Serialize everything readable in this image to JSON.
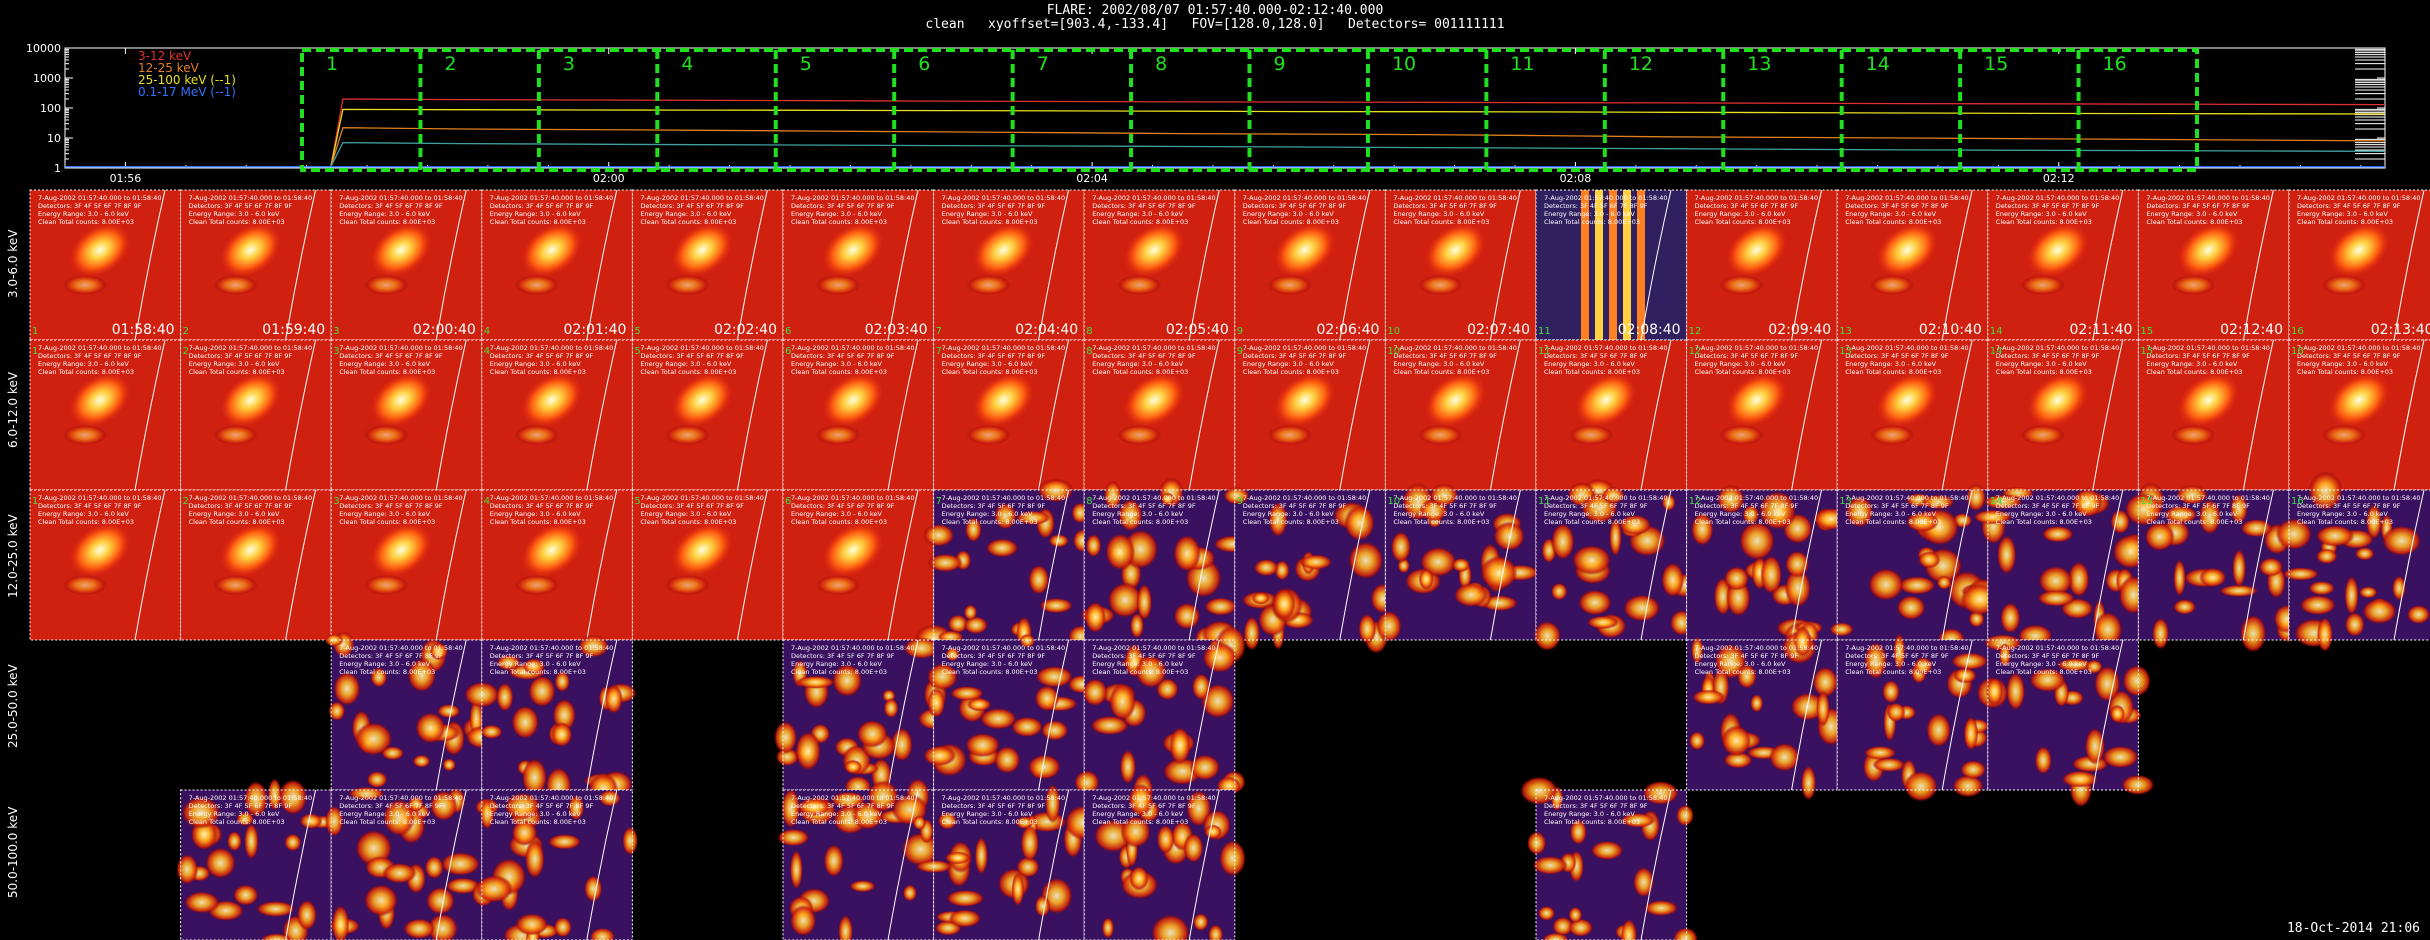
{
  "header": {
    "line1": "FLARE: 2002/08/07 01:57:40.000-02:12:40.000",
    "line2": "clean   xyoffset=[903.4,-133.4]   FOV=[128.0,128.0]   Detectors= 001111111"
  },
  "footer": {
    "timestamp": "18-Oct-2014 21:06"
  },
  "chart_data": {
    "type": "line",
    "lightcurve": {
      "yscale": "log",
      "ylim": [
        1,
        10000
      ],
      "yticks": [
        "1",
        "10",
        "100",
        "1000",
        "10000"
      ],
      "xticks": [
        {
          "label": "01:56",
          "time_min": 0
        },
        {
          "label": "02:00",
          "time_min": 4
        },
        {
          "label": "02:04",
          "time_min": 8
        },
        {
          "label": "02:08",
          "time_min": 12
        },
        {
          "label": "02:12",
          "time_min": 16
        }
      ],
      "xlim_min": [
        -0.5,
        18.7
      ],
      "legend": [
        {
          "label": "3-12 keV",
          "color": "#e03030"
        },
        {
          "label": "12-25 keV",
          "color": "#e08020"
        },
        {
          "label": "25-100 keV (--1)",
          "color": "#e8e020"
        },
        {
          "label": "0.1-17 MeV (--1)",
          "color": "#3070ff"
        }
      ],
      "series": [
        {
          "color": "#e03030",
          "start_min": 1.8,
          "values": [
            200,
            190,
            185,
            180,
            175,
            170,
            165,
            160,
            158,
            155,
            150,
            148,
            145,
            140,
            138,
            135,
            132,
            130
          ]
        },
        {
          "color": "#e8e020",
          "start_min": 1.8,
          "values": [
            90,
            88,
            86,
            85,
            84,
            82,
            80,
            78,
            76,
            75,
            74,
            72,
            70,
            68,
            66,
            65,
            64,
            63
          ]
        },
        {
          "color": "#e08020",
          "start_min": 1.8,
          "values": [
            22,
            20,
            19,
            18,
            17,
            16,
            15,
            14,
            13.5,
            13,
            12,
            11,
            10.5,
            10,
            9.5,
            9,
            8.5,
            8
          ]
        },
        {
          "color": "#40a0a0",
          "start_min": 1.8,
          "values": [
            7,
            6.5,
            6.2,
            6,
            5.8,
            5.6,
            5.4,
            5.2,
            5,
            4.8,
            4.6,
            4.4,
            4.2,
            4,
            3.9,
            3.8,
            3.7,
            3.6
          ]
        },
        {
          "color": "#3070ff",
          "start_min": -0.5,
          "values": [
            1.1,
            1.1,
            1.1,
            1.1,
            1.1,
            1.1,
            1.1,
            1.1
          ]
        }
      ],
      "intervals": [
        "1",
        "2",
        "3",
        "4",
        "5",
        "6",
        "7",
        "8",
        "9",
        "10",
        "11",
        "12",
        "13",
        "14",
        "15",
        "16"
      ],
      "interval_start_min": 1.75,
      "interval_step_min": 1.0
    },
    "images": {
      "rows": [
        {
          "label": "3.0-6.0 keV",
          "columns": [
            1,
            2,
            3,
            4,
            5,
            6,
            7,
            8,
            9,
            10,
            11,
            12,
            13,
            14,
            15,
            16
          ]
        },
        {
          "label": "6.0-12.0 keV",
          "columns": [
            1,
            2,
            3,
            4,
            5,
            6,
            7,
            8,
            9,
            10,
            11,
            12,
            13,
            14,
            15,
            16
          ]
        },
        {
          "label": "12.0-25.0 keV",
          "columns": [
            1,
            2,
            3,
            4,
            5,
            6,
            7,
            8,
            9,
            10,
            11,
            12,
            13,
            14,
            15,
            16
          ]
        },
        {
          "label": "25.0-50.0 keV",
          "columns": [
            3,
            4,
            6,
            7,
            8,
            12,
            13,
            14
          ]
        },
        {
          "label": "50.0-100.0 keV",
          "columns": [
            2,
            3,
            4,
            6,
            7,
            8,
            11
          ]
        }
      ],
      "row0_times": [
        "01:58:40",
        "01:59:40",
        "02:00:40",
        "02:01:40",
        "02:02:40",
        "02:03:40",
        "02:04:40",
        "02:05:40",
        "02:06:40",
        "02:07:40",
        "02:08:40",
        "02:09:40",
        "02:10:40",
        "02:11:40",
        "02:12:40",
        "02:13:40"
      ],
      "panel_text": {
        "line1": "7-Aug-2002 01:57:40.000 to 01:58:40",
        "line2": "Detectors: 3F 4F 5F 6F 7F 8F 9F",
        "line3": "Energy Range: 3.0 - 6.0 keV",
        "line4": "Clean    Total counts: 8.00E+03"
      }
    }
  }
}
